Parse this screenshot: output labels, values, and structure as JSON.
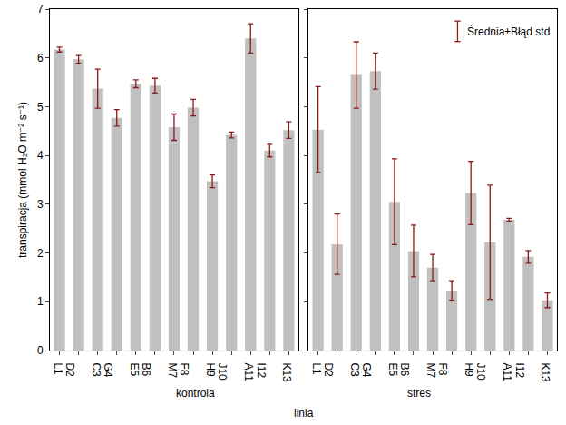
{
  "chart_data": {
    "type": "bar",
    "ylabel": "transpiracja (mmol H₂O m⁻² s⁻¹)",
    "xlabel": "linia",
    "categories": [
      "L1",
      "D2",
      "C3",
      "G4",
      "E5",
      "B6",
      "M7",
      "F8",
      "H9",
      "J10",
      "A11",
      "I12",
      "K13"
    ],
    "panels": [
      {
        "title": "kontrola",
        "values": [
          6.17,
          5.97,
          5.37,
          4.77,
          5.47,
          5.43,
          4.58,
          4.98,
          3.47,
          4.42,
          6.4,
          4.1,
          4.52
        ],
        "errors": [
          0.05,
          0.08,
          0.4,
          0.17,
          0.08,
          0.15,
          0.27,
          0.17,
          0.13,
          0.06,
          0.3,
          0.13,
          0.17
        ]
      },
      {
        "title": "stres",
        "values": [
          4.53,
          2.18,
          5.65,
          5.73,
          3.05,
          2.04,
          1.7,
          1.23,
          3.23,
          2.22,
          2.68,
          1.92,
          1.03
        ],
        "errors": [
          0.88,
          0.62,
          0.68,
          0.37,
          0.88,
          0.53,
          0.27,
          0.2,
          0.65,
          1.17,
          0.03,
          0.13,
          0.15
        ]
      }
    ],
    "color": "#c0c0c0",
    "error_color": "#8b1a1a",
    "legend": "top-right",
    "legend_label": "Średnia±Błąd std",
    "ylim": [
      0,
      7
    ],
    "yticks": [
      0,
      1,
      2,
      3,
      4,
      5,
      6,
      7
    ]
  }
}
